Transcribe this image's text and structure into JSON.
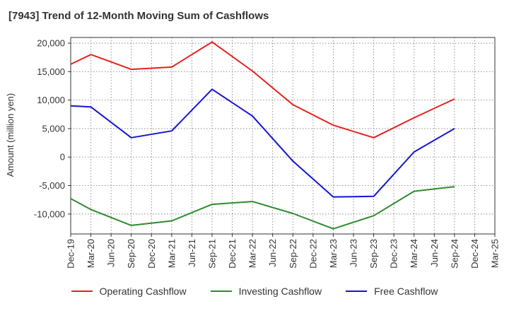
{
  "chart_data": {
    "type": "line",
    "title": "[7943]  Trend of 12-Month Moving Sum of Cashflows",
    "xlabel": "",
    "ylabel": "Amount (million yen)",
    "ylim": [
      -13500,
      21000
    ],
    "yticks": [
      -10000,
      -5000,
      0,
      5000,
      10000,
      15000,
      20000
    ],
    "ytick_labels": [
      "-10,000",
      "-5,000",
      "0",
      "5,000",
      "10,000",
      "15,000",
      "20,000"
    ],
    "categories": [
      "Dec-19",
      "Mar-20",
      "Jun-20",
      "Sep-20",
      "Dec-20",
      "Mar-21",
      "Jun-21",
      "Sep-21",
      "Dec-21",
      "Mar-22",
      "Jun-22",
      "Sep-22",
      "Dec-22",
      "Mar-23",
      "Jun-23",
      "Sep-23",
      "Dec-23",
      "Mar-24",
      "Jun-24",
      "Sep-24",
      "Dec-24",
      "Mar-25"
    ],
    "grid": true,
    "legend_position": "bottom",
    "series": [
      {
        "name": "Operating Cashflow",
        "color": "#e8201e",
        "values": [
          16300,
          18000,
          null,
          15400,
          null,
          15800,
          null,
          20200,
          null,
          15100,
          null,
          9200,
          null,
          5600,
          null,
          3400,
          null,
          6900,
          null,
          10200,
          null,
          null
        ]
      },
      {
        "name": "Investing Cashflow",
        "color": "#2e8b2e",
        "values": [
          -7300,
          -9200,
          null,
          -12000,
          null,
          -11200,
          null,
          -8300,
          null,
          -7800,
          null,
          -9900,
          null,
          -12600,
          null,
          -10300,
          null,
          -6000,
          null,
          -5200,
          null,
          null
        ]
      },
      {
        "name": "Free Cashflow",
        "color": "#1414d4",
        "values": [
          9000,
          8800,
          null,
          3400,
          null,
          4600,
          null,
          11900,
          null,
          7200,
          null,
          -700,
          null,
          -7000,
          null,
          -6900,
          null,
          900,
          null,
          5000,
          null,
          null
        ]
      }
    ]
  }
}
